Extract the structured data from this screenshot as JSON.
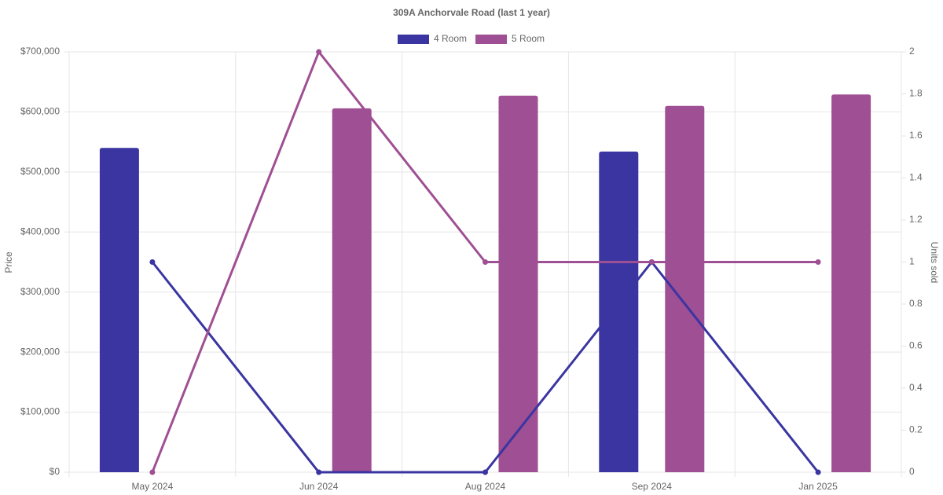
{
  "chart_data": {
    "type": "bar-line",
    "title": "309A Anchorvale Road (last 1 year)",
    "y_label": "Price",
    "y2_label": "Units sold",
    "categories": [
      "May 2024",
      "Jun 2024",
      "Aug 2024",
      "Sep 2024",
      "Jan 2025"
    ],
    "series": [
      {
        "name": "4 Room",
        "color": "#3a35a0",
        "values": [
          540000,
          null,
          null,
          534000,
          null
        ],
        "units_sold": [
          1,
          0,
          0,
          1,
          0
        ]
      },
      {
        "name": "5 Room",
        "color": "#9f4f93",
        "values": [
          null,
          606000,
          627000,
          610000,
          629000
        ],
        "units_sold": [
          0,
          2,
          1,
          1,
          1
        ]
      }
    ],
    "ylim": [
      0,
      700000
    ],
    "yticks": [
      {
        "value": 0,
        "label": "$0"
      },
      {
        "value": 100000,
        "label": "$100,000"
      },
      {
        "value": 200000,
        "label": "$200,000"
      },
      {
        "value": 300000,
        "label": "$300,000"
      },
      {
        "value": 400000,
        "label": "$400,000"
      },
      {
        "value": 500000,
        "label": "$500,000"
      },
      {
        "value": 600000,
        "label": "$600,000"
      },
      {
        "value": 700000,
        "label": "$700,000"
      }
    ],
    "y2lim": [
      0,
      2
    ],
    "y2ticks": [
      0,
      0.2,
      0.4,
      0.6,
      0.8,
      1,
      1.2,
      1.4,
      1.6,
      1.8,
      2
    ],
    "grid": true
  }
}
